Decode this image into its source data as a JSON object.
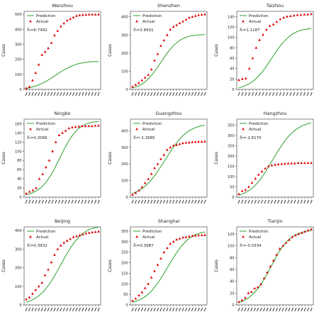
{
  "legend": {
    "prediction_label": "Prediction",
    "actual_label": "Actual"
  },
  "colors": {
    "prediction": "#2ca02c",
    "actual": "#dd0000",
    "axis": "#333333"
  },
  "chart_data": [
    {
      "type": "line+scatter",
      "title": "Wenzhou",
      "ylabel": "Cases",
      "ylim": [
        0,
        520
      ],
      "yticks": [
        0,
        100,
        200,
        300,
        400,
        500
      ],
      "annotation": "X̄ᵢ=6.7492",
      "legend_position": "upper left",
      "series": [
        {
          "name": "Prediction",
          "kind": "line",
          "values": [
            7,
            11,
            17,
            24,
            33,
            44,
            57,
            71,
            86,
            101,
            116,
            130,
            142,
            153,
            162,
            170,
            175,
            179,
            182,
            184,
            185,
            186
          ]
        },
        {
          "name": "Actual",
          "kind": "scatter",
          "values": [
            7,
            17,
            60,
            110,
            165,
            230,
            250,
            275,
            310,
            360,
            390,
            420,
            440,
            460,
            470,
            480,
            490,
            495,
            497,
            498,
            499,
            499,
            499,
            500
          ]
        }
      ]
    },
    {
      "type": "line+scatter",
      "title": "Shenzhen",
      "ylabel": "Cases",
      "ylim": [
        0,
        430
      ],
      "yticks": [
        0,
        100,
        200,
        300,
        400
      ],
      "annotation": "X̄ᵢ=2.8431",
      "legend_position": "upper left",
      "series": [
        {
          "name": "Prediction",
          "kind": "line",
          "values": [
            8,
            13,
            21,
            32,
            47,
            66,
            89,
            115,
            143,
            171,
            198,
            222,
            243,
            260,
            273,
            283,
            290,
            295,
            298,
            300,
            301,
            302
          ]
        },
        {
          "name": "Actual",
          "kind": "scatter",
          "values": [
            15,
            25,
            35,
            50,
            65,
            80,
            110,
            160,
            195,
            240,
            270,
            300,
            330,
            345,
            355,
            365,
            375,
            385,
            395,
            400,
            405,
            410,
            412,
            414
          ]
        }
      ]
    },
    {
      "type": "line+scatter",
      "title": "Taizhou",
      "ylabel": "Cases",
      "ylim": [
        0,
        150
      ],
      "yticks": [
        0,
        20,
        40,
        60,
        80,
        100,
        120,
        140
      ],
      "annotation": "X̄ᵢ=1.1187",
      "legend_position": "upper left",
      "series": [
        {
          "name": "Prediction",
          "kind": "line",
          "values": [
            3,
            5,
            8,
            12,
            17,
            24,
            32,
            42,
            53,
            64,
            75,
            85,
            93,
            100,
            106,
            110,
            113,
            115,
            116,
            117
          ]
        },
        {
          "name": "Actual",
          "kind": "scatter",
          "values": [
            18,
            20,
            21,
            40,
            60,
            80,
            95,
            105,
            115,
            122,
            125,
            130,
            135,
            138,
            140,
            141,
            142,
            143,
            143,
            144,
            144,
            145
          ]
        }
      ]
    },
    {
      "type": "line+scatter",
      "title": "Ningbo",
      "ylabel": "Cases",
      "ylim": [
        0,
        170
      ],
      "yticks": [
        0,
        20,
        40,
        60,
        80,
        100,
        120,
        140,
        160
      ],
      "annotation": "X̄ᵢ=0.2066",
      "legend_position": "upper left",
      "series": [
        {
          "name": "Prediction",
          "kind": "line",
          "values": [
            5,
            7,
            10,
            14,
            19,
            26,
            35,
            46,
            59,
            74,
            89,
            104,
            118,
            130,
            140,
            148,
            154,
            158,
            161,
            163,
            164,
            165
          ]
        },
        {
          "name": "Actual",
          "kind": "scatter",
          "values": [
            8,
            12,
            15,
            20,
            40,
            50,
            65,
            80,
            100,
            120,
            135,
            140,
            145,
            150,
            152,
            153,
            154,
            155,
            155,
            155,
            155,
            156,
            156
          ]
        }
      ]
    },
    {
      "type": "line+scatter",
      "title": "Guangzhou",
      "ylabel": "Cases",
      "ylim": [
        0,
        470
      ],
      "yticks": [
        0,
        100,
        200,
        300,
        400
      ],
      "annotation": "X̄ᵢ=-1.2685",
      "legend_position": "upper left",
      "series": [
        {
          "name": "Prediction",
          "kind": "line",
          "values": [
            22,
            30,
            40,
            53,
            69,
            88,
            111,
            137,
            166,
            196,
            227,
            258,
            288,
            316,
            342,
            364,
            382,
            397,
            409,
            418,
            425,
            430,
            433
          ]
        },
        {
          "name": "Actual",
          "kind": "scatter",
          "values": [
            15,
            25,
            40,
            60,
            85,
            110,
            140,
            175,
            200,
            230,
            255,
            285,
            300,
            310,
            315,
            320,
            325,
            328,
            330,
            332,
            333,
            334,
            334,
            335
          ]
        }
      ]
    },
    {
      "type": "line+scatter",
      "title": "Hangzhou",
      "ylabel": "Cases",
      "ylim": [
        0,
        380
      ],
      "yticks": [
        0,
        50,
        100,
        150,
        200,
        250,
        300,
        350
      ],
      "annotation": "X̄ᵢ=-2.6170",
      "legend_position": "upper left",
      "series": [
        {
          "name": "Prediction",
          "kind": "line",
          "values": [
            10,
            15,
            22,
            31,
            43,
            58,
            76,
            97,
            121,
            147,
            174,
            201,
            227,
            252,
            274,
            294,
            311,
            325,
            336,
            345,
            352,
            358,
            362
          ]
        },
        {
          "name": "Actual",
          "kind": "scatter",
          "values": [
            15,
            30,
            35,
            50,
            70,
            90,
            110,
            125,
            140,
            150,
            155,
            158,
            160,
            162,
            163,
            164,
            165,
            165,
            166,
            166,
            166,
            167,
            167
          ]
        }
      ]
    },
    {
      "type": "line+scatter",
      "title": "Beijing",
      "ylabel": "Cases",
      "ylim": [
        0,
        420
      ],
      "yticks": [
        0,
        100,
        200,
        300,
        400
      ],
      "annotation": "X̄ᵢ=0.3932",
      "legend_position": "upper left",
      "series": [
        {
          "name": "Prediction",
          "kind": "line",
          "values": [
            15,
            20,
            28,
            38,
            51,
            67,
            87,
            111,
            138,
            168,
            200,
            232,
            264,
            294,
            321,
            345,
            365,
            381,
            394,
            404,
            411,
            415,
            418
          ]
        },
        {
          "name": "Actual",
          "kind": "scatter",
          "values": [
            30,
            40,
            60,
            80,
            100,
            120,
            160,
            190,
            230,
            270,
            300,
            320,
            335,
            345,
            355,
            365,
            370,
            375,
            380,
            385,
            388,
            391,
            393,
            395
          ]
        }
      ]
    },
    {
      "type": "line+scatter",
      "title": "Shanghai",
      "ylabel": "Cases",
      "ylim": [
        0,
        370
      ],
      "yticks": [
        0,
        50,
        100,
        150,
        200,
        250,
        300,
        350
      ],
      "annotation": "X̄ᵢ=0.3987",
      "legend_position": "upper left",
      "series": [
        {
          "name": "Prediction",
          "kind": "line",
          "values": [
            12,
            17,
            23,
            31,
            41,
            54,
            70,
            89,
            111,
            135,
            161,
            187,
            213,
            238,
            261,
            281,
            298,
            312,
            323,
            332,
            338,
            343,
            346
          ]
        },
        {
          "name": "Actual",
          "kind": "scatter",
          "values": [
            20,
            30,
            45,
            60,
            80,
            100,
            130,
            160,
            190,
            220,
            250,
            270,
            290,
            300,
            310,
            315,
            320,
            322,
            325,
            327,
            329,
            330,
            331,
            332
          ]
        }
      ]
    },
    {
      "type": "line+scatter",
      "title": "Tianjin",
      "ylabel": "Cases",
      "ylim": [
        0,
        132
      ],
      "yticks": [
        0,
        20,
        40,
        60,
        80,
        100,
        120
      ],
      "annotation": "X̄ᵢ=-0.0334",
      "legend_position": "upper left",
      "series": [
        {
          "name": "Prediction",
          "kind": "line",
          "values": [
            4,
            6,
            9,
            13,
            18,
            24,
            31,
            40,
            50,
            61,
            72,
            83,
            93,
            101,
            108,
            113,
            117,
            120,
            122,
            124,
            125,
            126
          ]
        },
        {
          "name": "Actual",
          "kind": "scatter",
          "values": [
            5,
            8,
            12,
            20,
            22,
            28,
            30,
            35,
            45,
            55,
            65,
            75,
            85,
            95,
            100,
            105,
            110,
            115,
            118,
            120,
            122,
            124,
            126,
            128
          ]
        }
      ]
    }
  ]
}
